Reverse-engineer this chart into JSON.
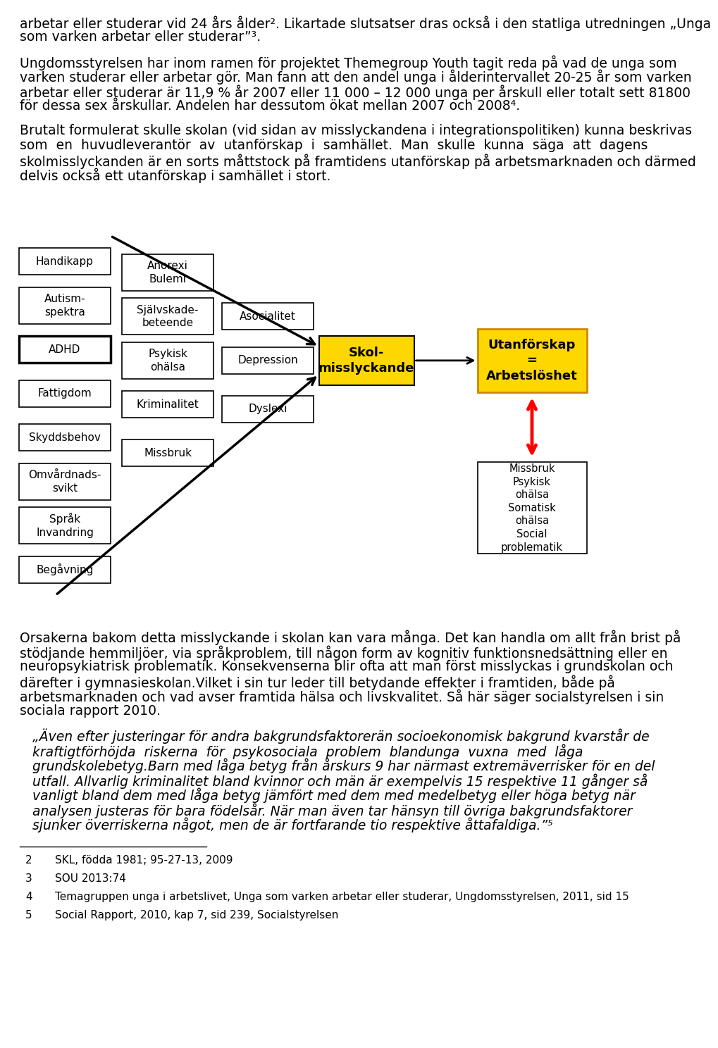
{
  "top_para1": [
    "arbetar eller studerar vid 24 års ålder². Likartade slutsatser dras också i den statliga utredningen „Unga",
    "som varken arbetar eller studerar”³."
  ],
  "top_para2": [
    "Ungdomsstyrelsen har inom ramen för projektet Themegroup Youth tagit reda på vad de unga som",
    "varken studerar eller arbetar gör. Man fann att den andel unga i ålderintervallet 20-25 år som varken",
    "arbetar eller studerar är 11,9 % år 2007 eller 11 000 – 12 000 unga per årskull eller totalt sett 81800",
    "för dessa sex årskullar. Andelen har dessutom ökat mellan 2007 och 2008⁴."
  ],
  "top_para3": [
    "Brutalt formulerat skulle skolan (vid sidan av misslyckandena i integrationspolitiken) kunna beskrivas",
    "som  en  huvudleverantör  av  utanförskap  i  samhället.  Man  skulle  kunna  säga  att  dagens",
    "skolmisslyckanden är en sorts måttstock på framtidens utanförskap på arbetsmarknaden och därmed",
    "delvis också ett utanförskap i samhället i stort."
  ],
  "bottom_para": [
    "Orsakerna bakom detta misslyckande i skolan kan vara många. Det kan handla om allt från brist på",
    "stödjande hemmiljöer, via språkproblem, till någon form av kognitiv funktionsnedsättning eller en",
    "neuropsykiatrisk problematik. Konsekvenserna blir ofta att man först misslyckas i grundskolan och",
    "därefter i gymnasieskolan.Vilket i sin tur leder till betydande effekter i framtiden, både på",
    "arbetsmarknaden och vad avser framtida hälsa och livskvalitet. Så här säger socialstyrelsen i sin",
    "sociala rapport 2010."
  ],
  "quote_lines": [
    "„Även efter justeringar för andra bakgrundsfaktorerän socioekonomisk bakgrund kvarstår de",
    "kraftigtförhöjda  riskerna  för  psykosociala  problem  blandunga  vuxna  med  låga",
    "grundskolebetyg.Barn med låga betyg från årskurs 9 har närmast extremäverrisker för en del",
    "utfall. Allvarlig kriminalitet bland kvinnor och män är exempelvis 15 respektive 11 gånger så",
    "vanligt bland dem med låga betyg jämfört med dem med medelbetyg eller höga betyg när",
    "analysen justeras för bara födelsår. När man även tar hänsyn till övriga bakgrundsfaktorer",
    "sjunker överriskerna något, men de är fortfarande tio respektive åttafaldiga.”⁵"
  ],
  "footnotes": [
    {
      "num": "2",
      "text": "SKL, födda 1981; 95-27-13, 2009"
    },
    {
      "num": "3",
      "text": "SOU 2013:74"
    },
    {
      "num": "4",
      "text": "Temagruppen unga i arbetslivet, Unga som varken arbetar eller studerar, Ungdomsstyrelsen, 2011, sid 15"
    },
    {
      "num": "5",
      "text": "Social Rapport, 2010, kap 7, sid 239, Socialstyrelsen"
    }
  ],
  "col1_labels": [
    "Handikapp",
    "Autism-\nspektra",
    "ADHD",
    "Fattigdom",
    "Skyddsbehov",
    "Omvårdnads-\nsvikt",
    "Språk\nInvandring",
    "Begåvning"
  ],
  "col2_labels": [
    "Anorexi\nBulemi",
    "Självskade-\nbeteende",
    "Psykisk\nohälsa",
    "Kriminalitet",
    "Missbruk"
  ],
  "col3_labels": [
    "Asocialitet",
    "Depression",
    "Dyslexi"
  ],
  "center_label": "Skol-\nmisslyckande",
  "right_label": "Utanförskap\n=\nArbetslöshet",
  "br_label": "Missbruk\nPsykisk\nohälsa\nSomatisk\nohälsa\nSocial\nproblematik",
  "yellow": "#FFD700",
  "black": "#000000",
  "white": "#FFFFFF",
  "red": "#FF0000"
}
